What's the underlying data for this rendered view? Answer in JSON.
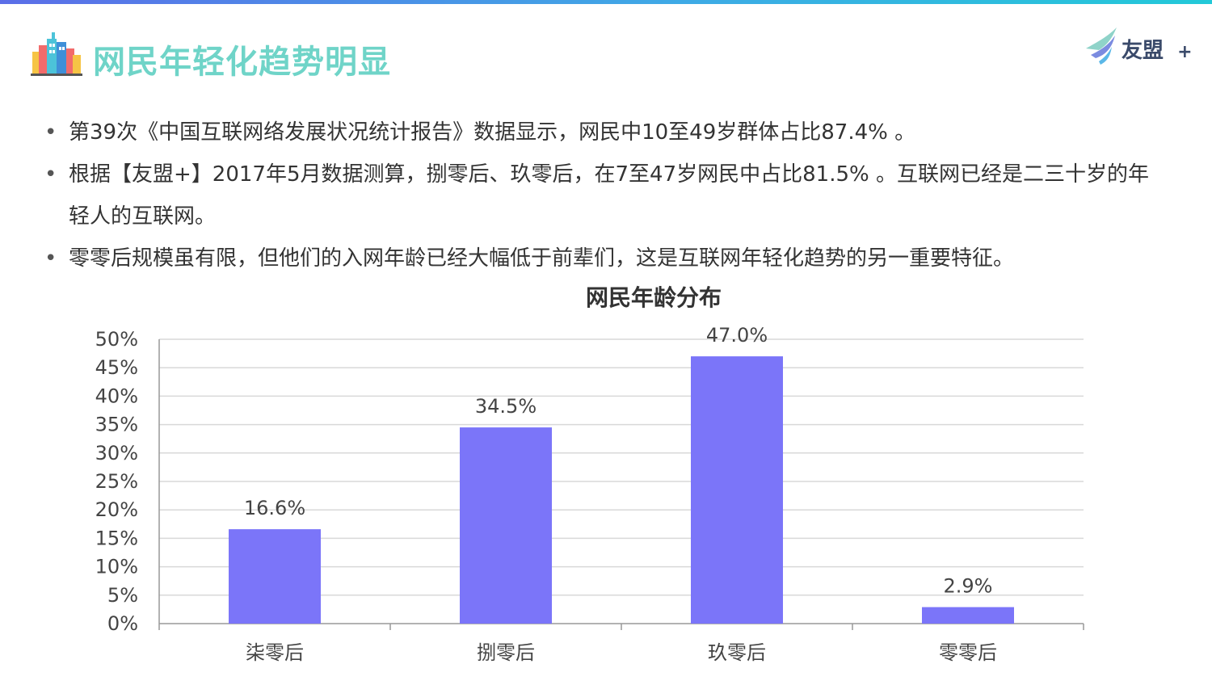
{
  "header": {
    "title": "网民年轻化趋势明显",
    "logo_text": "友盟",
    "logo_plus": "+"
  },
  "bullets": [
    "第39次《中国互联网络发展状况统计报告》数据显示，网民中10至49岁群体占比87.4% 。",
    "根据【友盟+】2017年5月数据测算，捌零后、玖零后，在7至47岁网民中占比81.5% 。互联网已经是二三十岁的年轻人的互联网。",
    "零零后规模虽有限，但他们的入网年龄已经大幅低于前辈们，这是互联网年轻化趋势的另一重要特征。"
  ],
  "colors": {
    "title": "#6fd4c8",
    "bar": "#7b75f9",
    "grid": "#d9d9d9",
    "axis": "#999999"
  },
  "chart_data": {
    "type": "bar",
    "title": "网民年龄分布",
    "categories": [
      "柒零后",
      "捌零后",
      "玖零后",
      "零零后"
    ],
    "values": [
      16.6,
      34.5,
      47.0,
      2.9
    ],
    "data_labels": [
      "16.6%",
      "34.5%",
      "47.0%",
      "2.9%"
    ],
    "yticks": [
      "0%",
      "5%",
      "10%",
      "15%",
      "20%",
      "25%",
      "30%",
      "35%",
      "40%",
      "45%",
      "50%"
    ],
    "ylim": [
      0,
      50
    ],
    "ystep": 5,
    "grid": true,
    "legend": "none",
    "xlabel": "",
    "ylabel": ""
  }
}
